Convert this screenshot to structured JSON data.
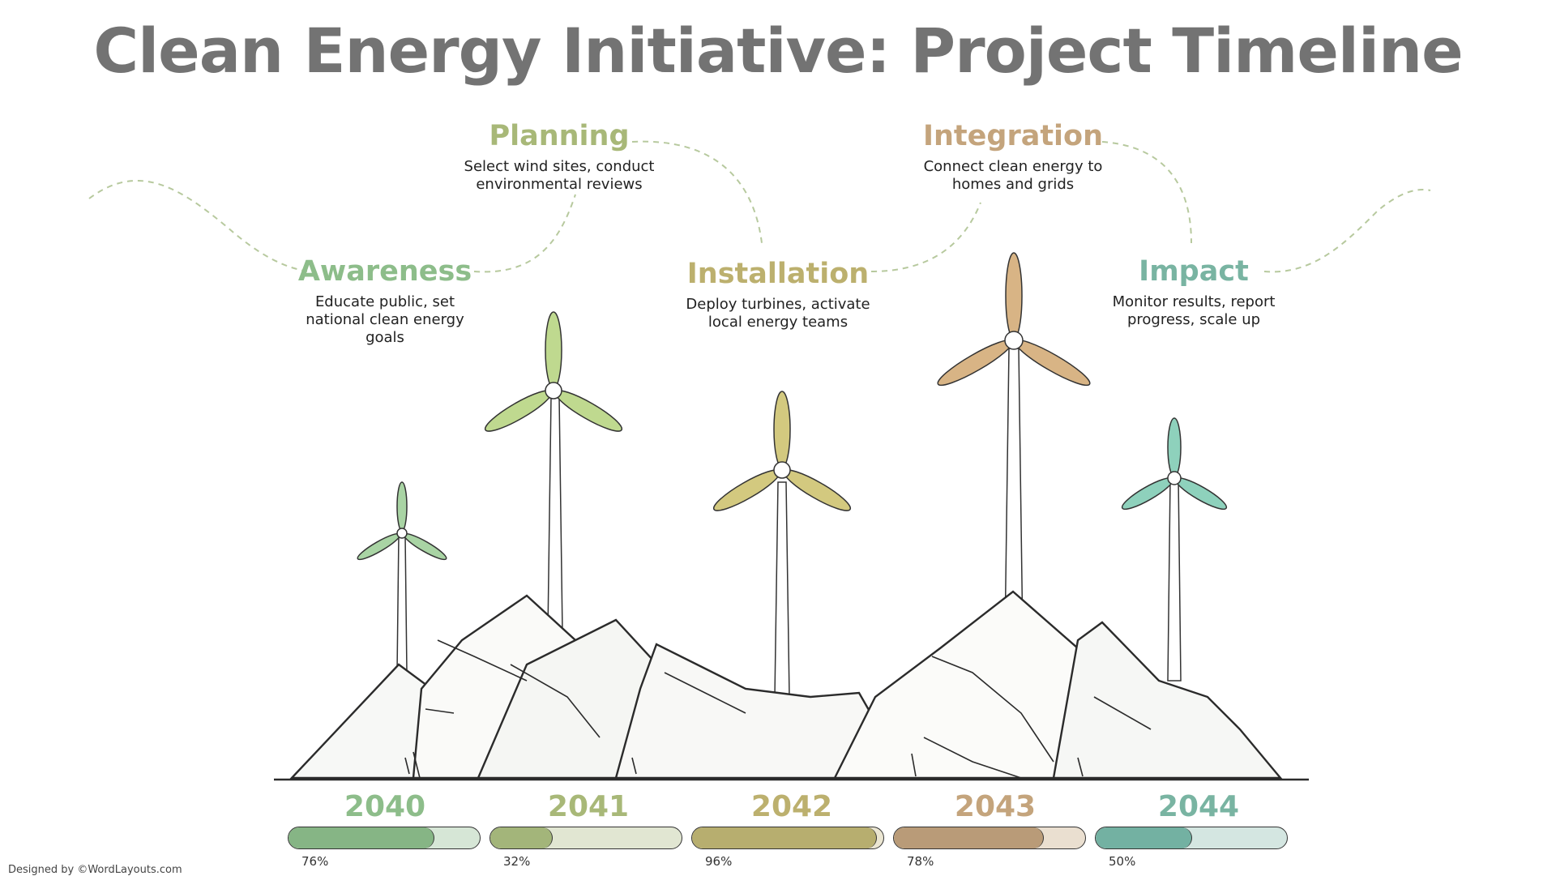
{
  "title": "Clean Energy Initiative: Project Timeline",
  "stages": [
    {
      "title": "Awareness",
      "description": "Educate public, set national clean energy goals",
      "year": "2040",
      "progress": 76,
      "progress_label": "76%",
      "color": "#8dbd8a",
      "bar_color": "#86b585",
      "track_color": "#d6e6d6"
    },
    {
      "title": "Planning",
      "description": "Select wind sites, conduct environmental reviews",
      "year": "2041",
      "progress": 32,
      "progress_label": "32%",
      "color": "#a8b878",
      "bar_color": "#a3b57a",
      "track_color": "#e1e6d2"
    },
    {
      "title": "Installation",
      "description": "Deploy turbines, activate local energy teams",
      "year": "2042",
      "progress": 96,
      "progress_label": "96%",
      "color": "#bcb06e",
      "bar_color": "#b7ae6f",
      "track_color": "#ebe6d2"
    },
    {
      "title": "Integration",
      "description": "Connect clean energy to homes and grids",
      "year": "2043",
      "progress": 78,
      "progress_label": "78%",
      "color": "#c4a47c",
      "bar_color": "#b99b78",
      "track_color": "#eadfd0"
    },
    {
      "title": "Impact",
      "description": "Monitor results, report progress, scale up",
      "year": "2044",
      "progress": 50,
      "progress_label": "50%",
      "color": "#79b4a2",
      "bar_color": "#73b1a2",
      "track_color": "#d4e6e1"
    }
  ],
  "credit": "Designed by ©WordLayouts.com",
  "turbine_colors": [
    "#a9d4a4",
    "#bfd98f",
    "#d3c97f",
    "#d8b485",
    "#8ed1bc"
  ]
}
